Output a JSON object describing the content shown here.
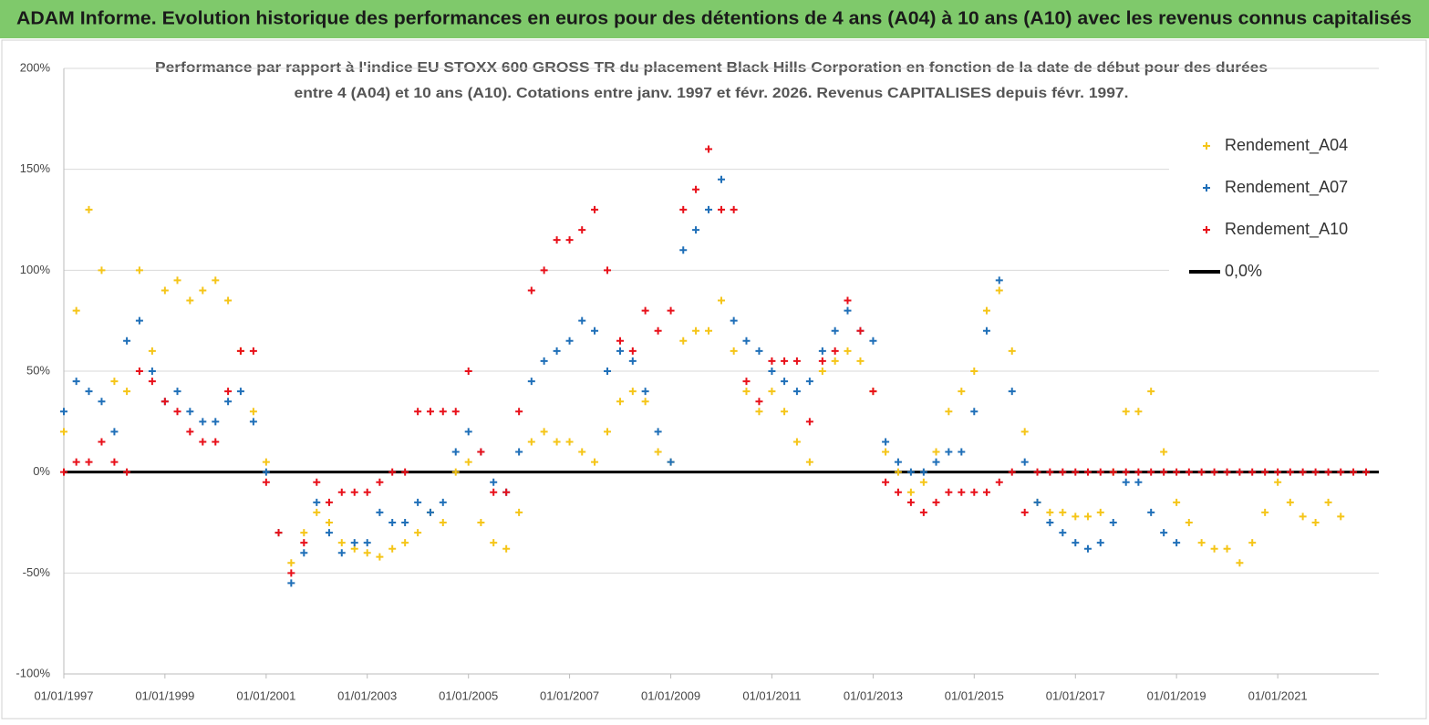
{
  "header": {
    "title": "ADAM Informe. Evolution historique des performances en euros pour des détentions de 4 ans (A04) à 10 ans (A10) avec les revenus connus capitalisés"
  },
  "chart_data": {
    "type": "scatter",
    "title": [
      "Performance par rapport à l'indice EU STOXX 600 GROSS TR  du placement Black Hills Corporation en fonction de la date de début pour des durées",
      "entre 4 (A04) et 10 ans (A10). Cotations entre janv. 1997 et févr. 2026. Revenus CAPITALISES depuis févr. 1997."
    ],
    "x": [
      "1997-01-01",
      "1997-04-01",
      "1997-07-01",
      "1997-10-01",
      "1998-01-01",
      "1998-04-01",
      "1998-07-01",
      "1998-10-01",
      "1999-01-01",
      "1999-04-01",
      "1999-07-01",
      "1999-10-01",
      "2000-01-01",
      "2000-04-01",
      "2000-07-01",
      "2000-10-01",
      "2001-01-01",
      "2001-04-01",
      "2001-07-01",
      "2001-10-01",
      "2002-01-01",
      "2002-04-01",
      "2002-07-01",
      "2002-10-01",
      "2003-01-01",
      "2003-04-01",
      "2003-07-01",
      "2003-10-01",
      "2004-01-01",
      "2004-04-01",
      "2004-07-01",
      "2004-10-01",
      "2005-01-01",
      "2005-04-01",
      "2005-07-01",
      "2005-10-01",
      "2006-01-01",
      "2006-04-01",
      "2006-07-01",
      "2006-10-01",
      "2007-01-01",
      "2007-04-01",
      "2007-07-01",
      "2007-10-01",
      "2008-01-01",
      "2008-04-01",
      "2008-07-01",
      "2008-10-01",
      "2009-01-01",
      "2009-04-01",
      "2009-07-01",
      "2009-10-01",
      "2010-01-01",
      "2010-04-01",
      "2010-07-01",
      "2010-10-01",
      "2011-01-01",
      "2011-04-01",
      "2011-07-01",
      "2011-10-01",
      "2012-01-01",
      "2012-04-01",
      "2012-07-01",
      "2012-10-01",
      "2013-01-01",
      "2013-04-01",
      "2013-07-01",
      "2013-10-01",
      "2014-01-01",
      "2014-04-01",
      "2014-07-01",
      "2014-10-01",
      "2015-01-01",
      "2015-04-01",
      "2015-07-01",
      "2015-10-01",
      "2016-01-01",
      "2016-04-01",
      "2016-07-01",
      "2016-10-01",
      "2017-01-01",
      "2017-04-01",
      "2017-07-01",
      "2017-10-01",
      "2018-01-01",
      "2018-04-01",
      "2018-07-01",
      "2018-10-01",
      "2019-01-01",
      "2019-04-01",
      "2019-07-01",
      "2019-10-01",
      "2020-01-01",
      "2020-04-01",
      "2020-07-01",
      "2020-10-01",
      "2021-01-01",
      "2021-04-01",
      "2021-07-01",
      "2021-10-01",
      "2022-01-01",
      "2022-04-01",
      "2022-07-01",
      "2022-10-01"
    ],
    "series": [
      {
        "name": "Rendement_A04",
        "color": "#f5c518",
        "values": [
          20,
          80,
          130,
          100,
          45,
          40,
          100,
          60,
          90,
          95,
          85,
          90,
          95,
          85,
          60,
          30,
          5,
          -30,
          -45,
          -30,
          -20,
          -25,
          -35,
          -38,
          -40,
          -42,
          -38,
          -35,
          -30,
          -20,
          -25,
          0,
          5,
          -25,
          -35,
          -38,
          -20,
          15,
          20,
          15,
          15,
          10,
          5,
          20,
          35,
          40,
          35,
          10,
          5,
          65,
          70,
          70,
          85,
          60,
          40,
          30,
          40,
          30,
          15,
          5,
          50,
          55,
          60,
          55,
          40,
          10,
          0,
          -10,
          -5,
          10,
          30,
          40,
          50,
          80,
          90,
          60,
          20,
          -15,
          -20,
          -20,
          -22,
          -22,
          -20,
          0,
          30,
          30,
          40,
          10,
          -15,
          -25,
          -35,
          -38,
          -38,
          -45,
          -35,
          -20,
          -5,
          -15,
          -22,
          -25,
          -15,
          -22,
          null,
          null
        ]
      },
      {
        "name": "Rendement_A07",
        "color": "#1f6fb8",
        "values": [
          30,
          45,
          40,
          35,
          20,
          65,
          75,
          50,
          35,
          40,
          30,
          25,
          25,
          35,
          40,
          25,
          0,
          -30,
          -55,
          -40,
          -15,
          -30,
          -40,
          -35,
          -35,
          -20,
          -25,
          -25,
          -15,
          -20,
          -15,
          10,
          20,
          10,
          -5,
          -10,
          10,
          45,
          55,
          60,
          65,
          75,
          70,
          50,
          60,
          55,
          40,
          20,
          5,
          110,
          120,
          130,
          145,
          75,
          65,
          60,
          50,
          45,
          40,
          45,
          60,
          70,
          80,
          70,
          65,
          15,
          5,
          0,
          0,
          5,
          10,
          10,
          30,
          70,
          95,
          40,
          5,
          -15,
          -25,
          -30,
          -35,
          -38,
          -35,
          -25,
          -5,
          -5,
          -20,
          -30,
          -35,
          null,
          null,
          null,
          null,
          null,
          null,
          null,
          null,
          null,
          null,
          null,
          null,
          null,
          null,
          null
        ]
      },
      {
        "name": "Rendement_A10",
        "color": "#e8101a",
        "values": [
          0,
          5,
          5,
          15,
          5,
          0,
          50,
          45,
          35,
          30,
          20,
          15,
          15,
          40,
          60,
          60,
          -5,
          -30,
          -50,
          -35,
          -5,
          -15,
          -10,
          -10,
          -10,
          -5,
          0,
          0,
          30,
          30,
          30,
          30,
          50,
          10,
          -10,
          -10,
          30,
          90,
          100,
          115,
          115,
          120,
          130,
          100,
          65,
          60,
          80,
          70,
          80,
          130,
          140,
          160,
          130,
          130,
          45,
          35,
          55,
          55,
          55,
          25,
          55,
          60,
          85,
          70,
          40,
          -5,
          -10,
          -15,
          -20,
          -15,
          -10,
          -10,
          -10,
          -10,
          -5,
          0,
          -20,
          0,
          0,
          0,
          0,
          0,
          0,
          0,
          0,
          0,
          0,
          0,
          0,
          0,
          0,
          0,
          0,
          0,
          0,
          0,
          0,
          0,
          0,
          0,
          0,
          0,
          0,
          0
        ]
      }
    ],
    "reference_line": {
      "name": "0,0%",
      "value": 0,
      "color": "#000000"
    },
    "xlim": [
      "1997-01-01",
      "2023-01-01"
    ],
    "xticks": [
      {
        "value": "1997-01-01",
        "label": "01/01/1997"
      },
      {
        "value": "1999-01-01",
        "label": "01/01/1999"
      },
      {
        "value": "2001-01-01",
        "label": "01/01/2001"
      },
      {
        "value": "2003-01-01",
        "label": "01/01/2003"
      },
      {
        "value": "2005-01-01",
        "label": "01/01/2005"
      },
      {
        "value": "2007-01-01",
        "label": "01/01/2007"
      },
      {
        "value": "2009-01-01",
        "label": "01/01/2009"
      },
      {
        "value": "2011-01-01",
        "label": "01/01/2011"
      },
      {
        "value": "2013-01-01",
        "label": "01/01/2013"
      },
      {
        "value": "2015-01-01",
        "label": "01/01/2015"
      },
      {
        "value": "2017-01-01",
        "label": "01/01/2017"
      },
      {
        "value": "2019-01-01",
        "label": "01/01/2019"
      },
      {
        "value": "2021-01-01",
        "label": "01/01/2021"
      }
    ],
    "ylim": [
      -100,
      200
    ],
    "yticks": [
      {
        "value": -100,
        "label": "-100%"
      },
      {
        "value": -50,
        "label": "-50%"
      },
      {
        "value": 0,
        "label": "0%"
      },
      {
        "value": 50,
        "label": "50%"
      },
      {
        "value": 100,
        "label": "100%"
      },
      {
        "value": 150,
        "label": "150%"
      },
      {
        "value": 200,
        "label": "200%"
      }
    ],
    "grid": true,
    "legend": "upper right"
  }
}
